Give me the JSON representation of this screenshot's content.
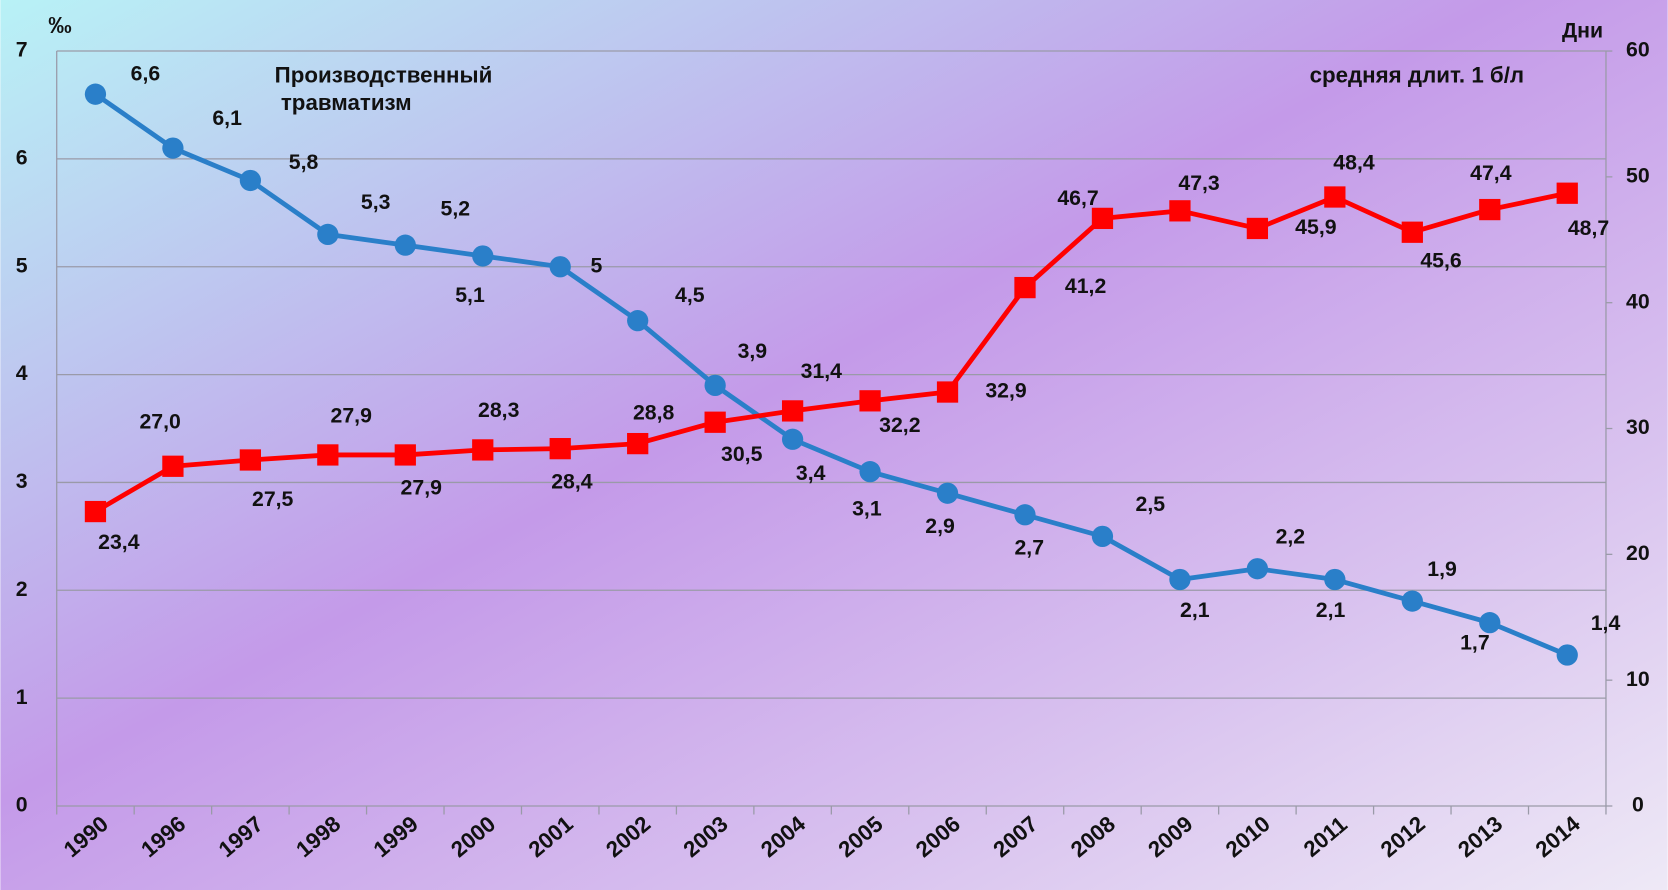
{
  "chart_data": {
    "type": "line",
    "ylabel": "‰",
    "y2label": "Дни",
    "categories": [
      "1990",
      "1996",
      "1997",
      "1998",
      "1999",
      "2000",
      "2001",
      "2002",
      "2003",
      "2004",
      "2005",
      "2006",
      "2007",
      "2008",
      "2009",
      "2010",
      "2011",
      "2012",
      "2013",
      "2014"
    ],
    "ylim": [
      0,
      7
    ],
    "yticks": [
      0,
      1,
      2,
      3,
      4,
      5,
      6,
      7
    ],
    "y2lim": [
      0,
      60
    ],
    "y2ticks": [
      0,
      10,
      20,
      30,
      40,
      50,
      60
    ],
    "grid": true,
    "series": [
      {
        "name": "Производственный травматизм",
        "color": "#2a7fc9",
        "marker": "circle",
        "values": [
          6.6,
          6.1,
          5.8,
          5.3,
          5.2,
          5.1,
          5,
          4.5,
          3.9,
          3.4,
          3.1,
          2.9,
          2.7,
          2.5,
          2.1,
          2.2,
          2.1,
          1.9,
          1.7,
          1.4
        ],
        "value_labels": [
          "6,6",
          "6,1",
          "5,8",
          "5,3",
          "5,2",
          "5,1",
          "5",
          "4,5",
          "3,9",
          "3,4",
          "3,1",
          "2,9",
          "2,7",
          "2,5",
          "2,1",
          "2,2",
          "2,1",
          "1,9",
          "1,7",
          "1,4"
        ]
      },
      {
        "name": "средняя длит. 1 б/л",
        "color": "#ff0000",
        "marker": "square",
        "axis": "y2",
        "values": [
          23.4,
          27.0,
          27.5,
          27.9,
          27.9,
          28.3,
          28.4,
          28.8,
          30.5,
          31.4,
          32.2,
          32.9,
          41.2,
          46.7,
          47.3,
          45.9,
          48.4,
          45.6,
          47.4,
          48.7
        ],
        "value_labels": [
          "23,4",
          "27,0",
          "27,5",
          "27,9",
          "27,9",
          "28,3",
          "28,4",
          "28,8",
          "30,5",
          "31,4",
          "32,2",
          "32,9",
          "41,2",
          "46,7",
          "47,3",
          "45,9",
          "48,4",
          "45,6",
          "47,4",
          "48,7"
        ]
      }
    ]
  }
}
